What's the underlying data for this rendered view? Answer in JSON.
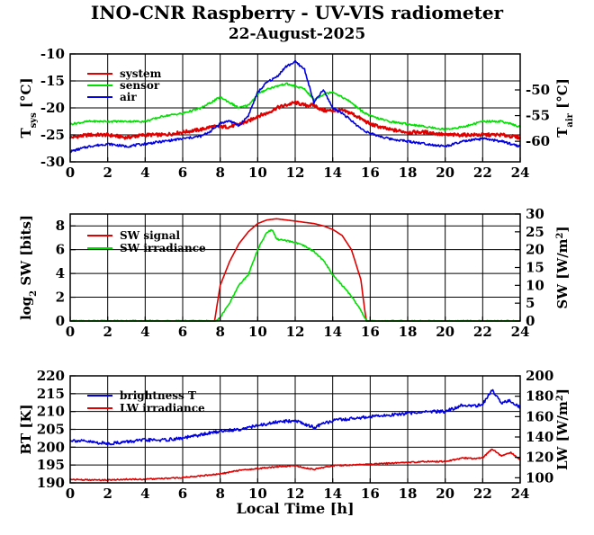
{
  "header": {
    "title": "INO-CNR Raspberry - UV-VIS radiometer",
    "date": "22-August-2025"
  },
  "colors": {
    "red": "#e00000",
    "green": "#00e000",
    "blue": "#0000e0",
    "axis": "#000000"
  },
  "chart_data": [
    {
      "type": "line",
      "xlabel": "",
      "xticks": [
        "0",
        "2",
        "4",
        "6",
        "8",
        "10",
        "12",
        "14",
        "16",
        "18",
        "20",
        "22",
        "24"
      ],
      "xlim": [
        0,
        24
      ],
      "ylabel_left": "T_sys [°C]",
      "ylim_left": [
        -30,
        -10
      ],
      "yticks_left": [
        "-30",
        "-25",
        "-20",
        "-15",
        "-10"
      ],
      "ylabel_right": "T_air [°C]",
      "ylim_right": [
        -64,
        -43
      ],
      "yticks_right": [
        "-60",
        "-55",
        "-50"
      ],
      "grid": true,
      "legend": "top-left",
      "series": [
        {
          "name": "system",
          "color": "red",
          "axis": "left",
          "x": [
            0,
            1,
            2,
            3,
            4,
            5,
            6,
            7,
            7.5,
            8,
            8.5,
            9,
            9.5,
            10,
            10.5,
            11,
            11.5,
            12,
            12.5,
            13,
            13.5,
            14,
            14.5,
            15,
            15.5,
            16,
            17,
            18,
            19,
            20,
            21,
            22,
            23,
            24
          ],
          "y": [
            -25.5,
            -25,
            -25,
            -25.5,
            -25,
            -25,
            -24.5,
            -24,
            -23.5,
            -23.5,
            -23.5,
            -23,
            -22.5,
            -21.5,
            -21,
            -20,
            -19.5,
            -19,
            -19.5,
            -19.5,
            -20.5,
            -20.5,
            -20.5,
            -21,
            -22,
            -23,
            -24,
            -24.5,
            -24.5,
            -25,
            -25,
            -25,
            -25,
            -25.5
          ]
        },
        {
          "name": "sensor",
          "color": "green",
          "axis": "left",
          "x": [
            0,
            1,
            2,
            3,
            4,
            5,
            6,
            7,
            7.5,
            8,
            8.5,
            9,
            9.5,
            10,
            10.5,
            11,
            11.5,
            12,
            12.5,
            13,
            13.5,
            14,
            14.5,
            15,
            15.5,
            16,
            17,
            18,
            19,
            20,
            21,
            22,
            23,
            24
          ],
          "y": [
            -23,
            -22.5,
            -22.5,
            -22.5,
            -22.5,
            -21.5,
            -21,
            -20,
            -19,
            -18,
            -19,
            -20,
            -19.5,
            -17.5,
            -16.5,
            -16,
            -15.5,
            -16,
            -16.5,
            -18.5,
            -17.5,
            -17,
            -18,
            -19,
            -20.5,
            -21.5,
            -22.5,
            -23,
            -23.5,
            -24,
            -23.5,
            -22.5,
            -22.5,
            -23.5
          ]
        },
        {
          "name": "air",
          "color": "blue",
          "axis": "right",
          "x": [
            0,
            1,
            2,
            3,
            4,
            5,
            6,
            7,
            7.5,
            8,
            8.5,
            9,
            9.5,
            10,
            10.5,
            11,
            11.5,
            12,
            12.5,
            13,
            13.5,
            14,
            14.5,
            15,
            15.5,
            16,
            17,
            18,
            19,
            20,
            21,
            22,
            23,
            24
          ],
          "y": [
            -62,
            -61,
            -60.5,
            -61,
            -60.5,
            -60,
            -59.5,
            -59,
            -58,
            -56.5,
            -56,
            -57,
            -55,
            -50.5,
            -48.5,
            -47.5,
            -45.5,
            -44.5,
            -46,
            -52.5,
            -50,
            -53.5,
            -54.5,
            -56,
            -57.5,
            -58.5,
            -59.5,
            -60,
            -60.5,
            -61,
            -60,
            -59.5,
            -60,
            -61
          ]
        }
      ]
    },
    {
      "type": "line",
      "xlabel": "",
      "xticks": [
        "0",
        "2",
        "4",
        "6",
        "8",
        "10",
        "12",
        "14",
        "16",
        "18",
        "20",
        "22",
        "24"
      ],
      "xlim": [
        0,
        24
      ],
      "ylabel_left": "log2 SW [bits]",
      "ylim_left": [
        0,
        9
      ],
      "yticks_left": [
        "0",
        "2",
        "4",
        "6",
        "8"
      ],
      "ylabel_right": "SW [W/m2]",
      "ylim_right": [
        0,
        30
      ],
      "yticks_right": [
        "0",
        "5",
        "10",
        "15",
        "20",
        "25",
        "30"
      ],
      "grid": true,
      "legend": "top-left",
      "series": [
        {
          "name": "SW signal",
          "color": "red",
          "axis": "left",
          "x": [
            0,
            7.7,
            7.8,
            8,
            8.5,
            9,
            9.5,
            10,
            10.5,
            11,
            11.5,
            12,
            12.5,
            13,
            13.5,
            14,
            14.5,
            15,
            15.5,
            15.7,
            15.8,
            24
          ],
          "y": [
            0,
            0,
            1,
            3,
            5,
            6.5,
            7.5,
            8.2,
            8.5,
            8.6,
            8.5,
            8.4,
            8.3,
            8.2,
            8,
            7.7,
            7.2,
            6,
            3.5,
            1,
            0,
            0
          ]
        },
        {
          "name": "SW irradiance",
          "color": "green",
          "axis": "right",
          "x": [
            0,
            7.8,
            8,
            8.5,
            9,
            9.5,
            10,
            10.5,
            10.8,
            11,
            11.5,
            12,
            12.5,
            13,
            13.5,
            14,
            14.5,
            15,
            15.5,
            15.8,
            24
          ],
          "y": [
            0,
            0,
            1,
            5,
            10,
            13,
            20,
            25,
            25.5,
            23,
            22.5,
            22,
            21,
            19.5,
            17,
            13,
            10,
            7,
            3,
            0,
            0
          ]
        }
      ]
    },
    {
      "type": "line",
      "xlabel": "Local Time [h]",
      "xticks": [
        "0",
        "2",
        "4",
        "6",
        "8",
        "10",
        "12",
        "14",
        "16",
        "18",
        "20",
        "22",
        "24"
      ],
      "xlim": [
        0,
        24
      ],
      "ylabel_left": "BT [K]",
      "ylim_left": [
        190,
        220
      ],
      "yticks_left": [
        "190",
        "195",
        "200",
        "205",
        "210",
        "215",
        "220"
      ],
      "ylabel_right": "LW [W/m2]",
      "ylim_right": [
        95,
        200
      ],
      "yticks_right": [
        "100",
        "120",
        "140",
        "160",
        "180",
        "200"
      ],
      "grid": true,
      "legend": "top-left",
      "series": [
        {
          "name": "brightness T",
          "color": "blue",
          "axis": "left",
          "x": [
            0,
            1,
            2,
            3,
            4,
            5,
            6,
            7,
            7.5,
            8,
            9,
            10,
            11,
            12,
            12.5,
            13,
            13.5,
            14,
            15,
            16,
            17,
            18,
            19,
            20,
            20.5,
            21,
            21.5,
            22,
            22.5,
            23,
            23.5,
            24
          ],
          "y": [
            202,
            201.5,
            201,
            201.5,
            202,
            202,
            202.5,
            203.5,
            204,
            204.5,
            205,
            206,
            207,
            207.5,
            206.5,
            205.5,
            206.5,
            207.5,
            208,
            208.5,
            209,
            209.5,
            210,
            210,
            211,
            212,
            211.5,
            212,
            216,
            212.5,
            213,
            211
          ]
        },
        {
          "name": "LW irradiance",
          "color": "red",
          "axis": "left",
          "x": [
            0,
            1,
            2,
            3,
            4,
            5,
            6,
            7,
            8,
            9,
            10,
            11,
            12,
            12.5,
            13,
            13.5,
            14,
            15,
            16,
            17,
            18,
            19,
            20,
            20.5,
            21,
            21.5,
            22,
            22.5,
            23,
            23.5,
            24
          ],
          "y": [
            191,
            190.8,
            190.8,
            191,
            191,
            191.2,
            191.5,
            192,
            192.5,
            193.5,
            194,
            194.5,
            194.8,
            194.2,
            193.8,
            194.3,
            194.8,
            195,
            195.2,
            195.5,
            195.7,
            196,
            196,
            196.5,
            197,
            196.8,
            197,
            199.5,
            197.5,
            198.5,
            196.5
          ]
        }
      ]
    }
  ]
}
